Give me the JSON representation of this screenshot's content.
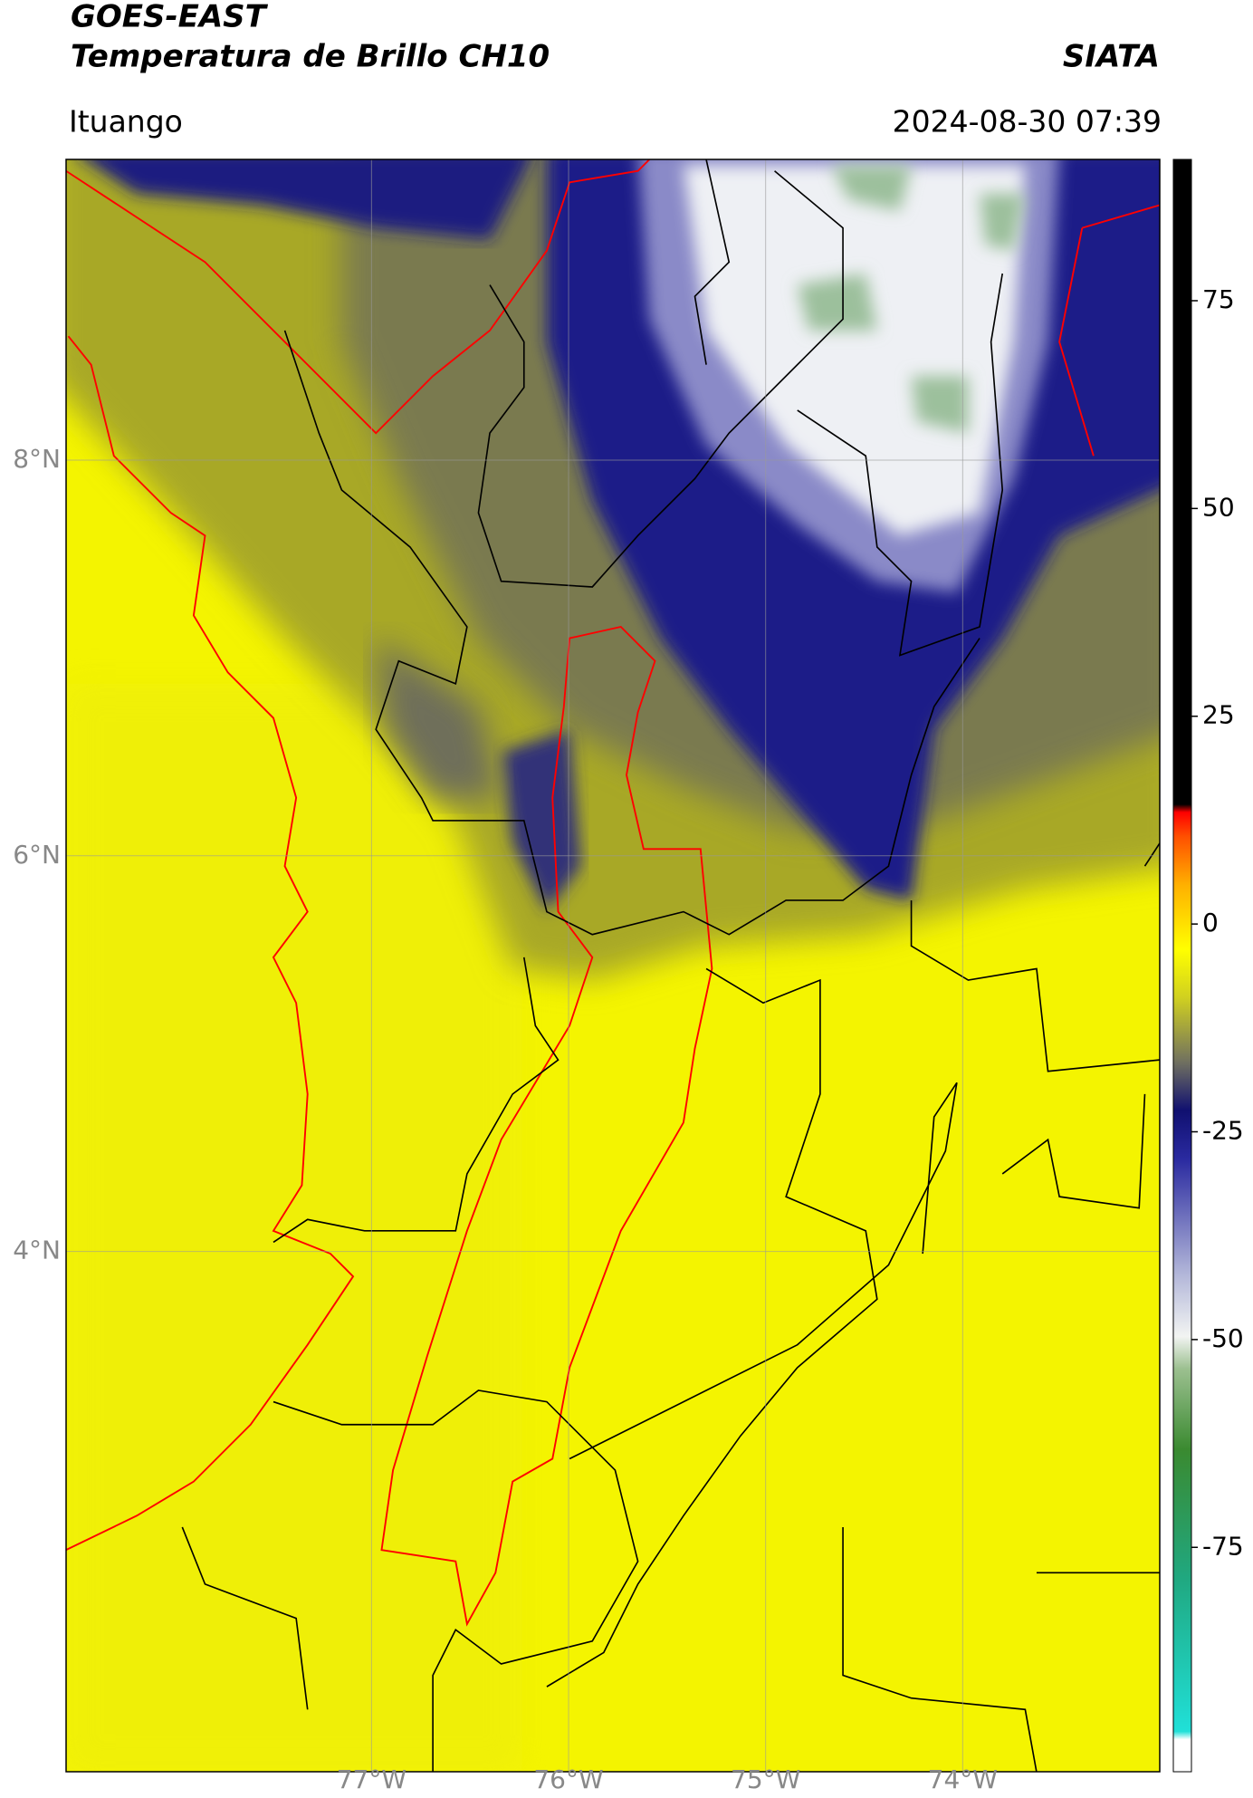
{
  "header": {
    "title_line1": "GOES-EAST",
    "title_line2": "Temperatura de Brillo CH10",
    "brand": "SIATA",
    "location": "Ituango",
    "datetime": "2024-08-30 07:39"
  },
  "map": {
    "xlim": [
      -78.55,
      -73.0
    ],
    "ylim": [
      1.37,
      9.52
    ],
    "yticks": [
      {
        "value": 8,
        "label": "8°N"
      },
      {
        "value": 6,
        "label": "6°N"
      },
      {
        "value": 4,
        "label": "4°N"
      }
    ],
    "xticks": [
      {
        "value": -77,
        "label": "77°W"
      },
      {
        "value": -76,
        "label": "76°W"
      },
      {
        "value": -75,
        "label": "75°W"
      },
      {
        "value": -74,
        "label": "74°W"
      }
    ]
  },
  "colorbar": {
    "lim": [
      -102,
      92
    ],
    "ticks": [
      75,
      50,
      25,
      0,
      -25,
      -50,
      -75
    ]
  }
}
